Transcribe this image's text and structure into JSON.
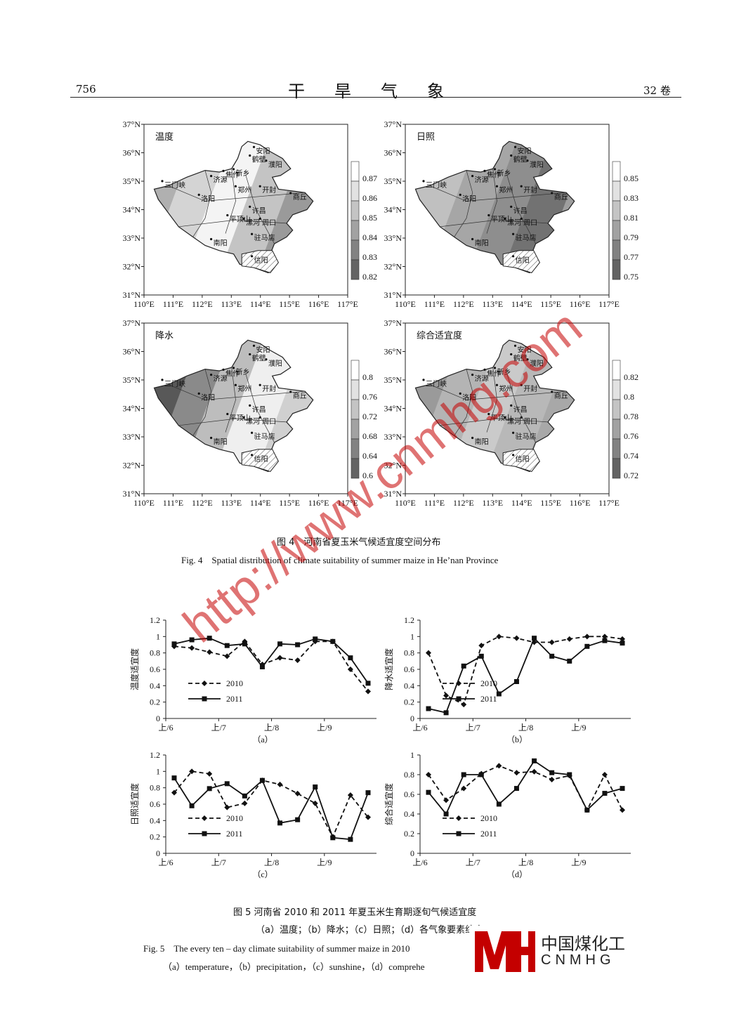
{
  "header": {
    "page_number": "756",
    "journal": "干旱气象",
    "volume": "32 卷"
  },
  "fig4": {
    "caption_cn": "图 4　河南省夏玉米气候适宜度空间分布",
    "caption_en": "Fig. 4　Spatial distribution of climate suitability of summer maize in He’nan Province",
    "lat_ticks": [
      "37°N",
      "36°N",
      "35°N",
      "34°N",
      "33°N",
      "32°N",
      "31°N"
    ],
    "lon_ticks": [
      "110°E",
      "111°E",
      "112°E",
      "113°E",
      "114°E",
      "115°E",
      "116°E",
      "117°E"
    ],
    "cities": [
      "安阳",
      "鹤壁",
      "濮阳",
      "新乡",
      "焦作",
      "济源",
      "三门峡",
      "郑州",
      "开封",
      "洛阳",
      "商丘",
      "许昌",
      "平顶山",
      "漯河",
      "周口",
      "南阳",
      "驻马店",
      "信阳"
    ],
    "panels": [
      {
        "title": "温度",
        "legend": [
          "0.87",
          "0.86",
          "0.85",
          "0.84",
          "0.83",
          "0.82"
        ]
      },
      {
        "title": "日照",
        "legend": [
          "0.85",
          "0.83",
          "0.81",
          "0.79",
          "0.77",
          "0.75"
        ]
      },
      {
        "title": "降水",
        "legend": [
          "0.8",
          "0.76",
          "0.72",
          "0.68",
          "0.64",
          "0.6"
        ]
      },
      {
        "title": "综合适宜度",
        "legend": [
          "0.82",
          "0.8",
          "0.78",
          "0.76",
          "0.74",
          "0.72"
        ]
      }
    ],
    "legend_colors": [
      "#ffffff",
      "#e2e2e2",
      "#c4c4c4",
      "#a2a2a2",
      "#828282",
      "#646464"
    ]
  },
  "fig5": {
    "caption_cn": "图 5 河南省 2010 和 2011 年夏玉米生育期逐旬气候适宜度",
    "caption_cn_sub": "（a）温度；（b）降水；（c）日照；（d）各气象要素综合",
    "caption_en": "Fig. 5　The every ten – day climate suitability of summer maize in 2010",
    "caption_en_sub": "（a）temperature，（b）precipitation，（c）sunshine，（d）comprehe"
  },
  "chart_data": [
    {
      "type": "line",
      "panel_label": "（a）",
      "ylabel": "温度适宜度",
      "ylim": [
        0,
        1.2
      ],
      "yticks": [
        "0",
        "0.2",
        "0.4",
        "0.6",
        "0.8",
        "1",
        "1.2"
      ],
      "xticks": [
        "上/6",
        "上/7",
        "上/8",
        "上/9"
      ],
      "series": [
        {
          "name": "2010",
          "style": "dashed",
          "marker": "diamond",
          "values": [
            0.88,
            0.86,
            0.81,
            0.76,
            0.94,
            0.66,
            0.74,
            0.71,
            0.94,
            0.94,
            0.6,
            0.33
          ]
        },
        {
          "name": "2011",
          "style": "solid",
          "marker": "square",
          "values": [
            0.91,
            0.96,
            0.98,
            0.89,
            0.91,
            0.63,
            0.91,
            0.9,
            0.97,
            0.94,
            0.74,
            0.43
          ]
        }
      ]
    },
    {
      "type": "line",
      "panel_label": "（b）",
      "ylabel": "降水适宜度",
      "ylim": [
        0,
        1.2
      ],
      "yticks": [
        "0",
        "0.2",
        "0.4",
        "0.6",
        "0.8",
        "1",
        "1.2"
      ],
      "xticks": [
        "上/6",
        "上/7",
        "上/8",
        "上/9"
      ],
      "series": [
        {
          "name": "2010",
          "style": "dashed",
          "marker": "diamond",
          "values": [
            0.8,
            0.28,
            0.17,
            0.89,
            1.0,
            0.98,
            0.93,
            0.93,
            0.97,
            1.0,
            1.0,
            0.97
          ]
        },
        {
          "name": "2011",
          "style": "solid",
          "marker": "square",
          "values": [
            0.12,
            0.07,
            0.64,
            0.76,
            0.3,
            0.45,
            0.98,
            0.76,
            0.7,
            0.88,
            0.95,
            0.92
          ]
        }
      ]
    },
    {
      "type": "line",
      "panel_label": "（c）",
      "ylabel": "日照适宜度",
      "ylim": [
        0,
        1.2
      ],
      "yticks": [
        "0",
        "0.2",
        "0.4",
        "0.6",
        "0.8",
        "1",
        "1.2"
      ],
      "xticks": [
        "上/6",
        "上/7",
        "上/8",
        "上/9"
      ],
      "series": [
        {
          "name": "2010",
          "style": "dashed",
          "marker": "diamond",
          "values": [
            0.74,
            1.0,
            0.97,
            0.56,
            0.61,
            0.89,
            0.84,
            0.73,
            0.61,
            0.2,
            0.71,
            0.44
          ]
        },
        {
          "name": "2011",
          "style": "solid",
          "marker": "square",
          "values": [
            0.92,
            0.58,
            0.79,
            0.85,
            0.7,
            0.89,
            0.37,
            0.41,
            0.81,
            0.19,
            0.17,
            0.74
          ]
        }
      ]
    },
    {
      "type": "line",
      "panel_label": "（d）",
      "ylabel": "综合适宜度",
      "ylim": [
        0,
        1
      ],
      "yticks": [
        "0",
        "0.2",
        "0.4",
        "0.6",
        "0.8",
        "1"
      ],
      "xticks": [
        "上/6",
        "上/7",
        "上/8",
        "上/9"
      ],
      "series": [
        {
          "name": "2010",
          "style": "dashed",
          "marker": "diamond",
          "values": [
            0.8,
            0.54,
            0.66,
            0.81,
            0.89,
            0.82,
            0.83,
            0.75,
            0.79,
            0.44,
            0.8,
            0.44
          ]
        },
        {
          "name": "2011",
          "style": "solid",
          "marker": "square",
          "values": [
            0.62,
            0.4,
            0.8,
            0.8,
            0.5,
            0.66,
            0.94,
            0.82,
            0.8,
            0.44,
            0.61,
            0.66
          ]
        }
      ]
    }
  ],
  "watermark": "http://www.cnmhg.com",
  "logo": {
    "cn": "中国煤化工",
    "en": "CNMHG",
    "mark": "MH"
  }
}
